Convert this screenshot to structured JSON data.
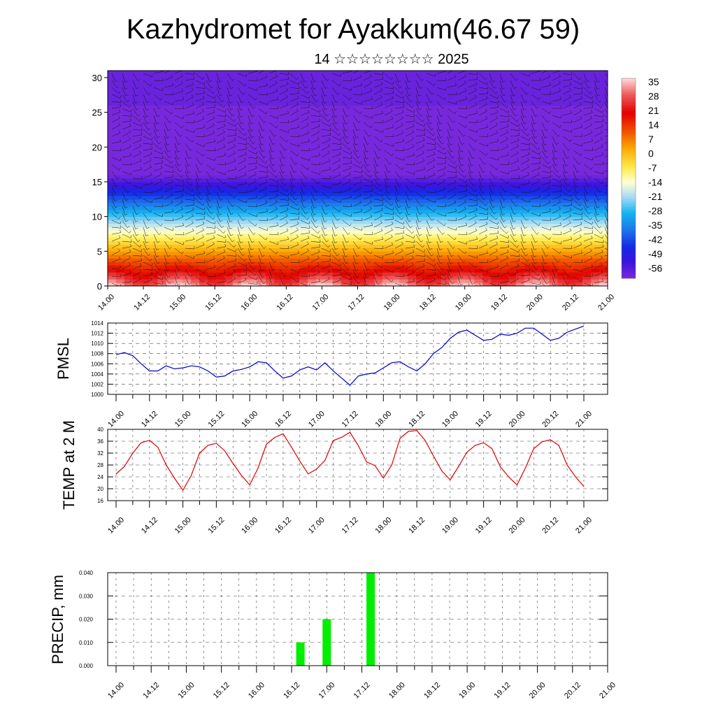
{
  "header": {
    "title": "Kazhydromet for Ayakkum(46.67 59)",
    "subtitle": "14 ☆☆☆☆☆☆☆☆ 2025"
  },
  "time_labels": [
    "14.00",
    "14.12",
    "15.00",
    "15.12",
    "16.00",
    "16.12",
    "17.00",
    "17.12",
    "18.00",
    "18.12",
    "19.00",
    "19.12",
    "20.00",
    "20.12",
    "21.00"
  ],
  "chart_data": [
    {
      "type": "heatmap",
      "name": "cross-section",
      "x": [
        "14.00",
        "14.12",
        "15.00",
        "15.12",
        "16.00",
        "16.12",
        "17.00",
        "17.12",
        "18.00",
        "18.12",
        "19.00",
        "19.12",
        "20.00",
        "20.12",
        "21.00"
      ],
      "ylim": [
        0,
        31
      ],
      "yticks": [
        "0",
        "5",
        "10",
        "15",
        "20",
        "25",
        "30"
      ],
      "color_bar": {
        "labels": [
          "35",
          "28",
          "21",
          "14",
          "7",
          "0",
          "-7",
          "-14",
          "-21",
          "-28",
          "-35",
          "-42",
          "-49",
          "-56"
        ],
        "range": [
          -60,
          38
        ]
      },
      "contour_note": "temperature shading with wind barbs"
    },
    {
      "type": "line",
      "name": "pmsl",
      "ylabel": "PMSL",
      "ylim": [
        1000,
        1014
      ],
      "yticks": [
        "1000",
        "1002",
        "1004",
        "1006",
        "1008",
        "1010",
        "1012",
        "1014"
      ],
      "color": "#0000cc",
      "x_start": 0,
      "x_step": 3,
      "values": [
        1007.8,
        1008.2,
        1007.6,
        1006.0,
        1004.6,
        1004.6,
        1005.6,
        1005.0,
        1005.2,
        1005.6,
        1005.4,
        1004.6,
        1003.4,
        1003.6,
        1004.6,
        1004.9,
        1005.4,
        1006.4,
        1006.2,
        1004.6,
        1003.2,
        1003.6,
        1004.8,
        1005.4,
        1004.8,
        1006.2,
        1004.6,
        1003.2,
        1001.8,
        1003.6,
        1004.0,
        1004.2,
        1005.2,
        1006.2,
        1006.4,
        1005.4,
        1004.6,
        1006.0,
        1008.0,
        1009.2,
        1011.0,
        1012.2,
        1012.6,
        1011.6,
        1010.6,
        1010.8,
        1011.8,
        1011.6,
        1012.0,
        1013.0,
        1013.0,
        1011.8,
        1010.6,
        1011.0,
        1012.2,
        1012.8,
        1013.4
      ]
    },
    {
      "type": "line",
      "name": "temp2m",
      "ylabel": "TEMP at 2 M",
      "ylim": [
        16,
        40
      ],
      "yticks": [
        "16",
        "20",
        "24",
        "28",
        "32",
        "36",
        "40"
      ],
      "color": "#dd0000",
      "x_start": 0,
      "x_step": 3,
      "values": [
        25.0,
        27.5,
        32.0,
        35.5,
        36.3,
        34.0,
        28.0,
        23.5,
        19.5,
        24.5,
        32.0,
        34.6,
        35.3,
        32.8,
        28.5,
        24.5,
        21.3,
        27.0,
        35.0,
        37.3,
        38.5,
        34.0,
        29.3,
        25.0,
        26.6,
        29.5,
        36.2,
        37.3,
        39.0,
        34.5,
        29.0,
        27.8,
        23.6,
        28.0,
        37.0,
        39.3,
        39.6,
        36.3,
        31.0,
        26.0,
        23.0,
        27.5,
        32.3,
        34.6,
        35.5,
        33.5,
        27.4,
        24.0,
        21.3,
        27.0,
        33.5,
        35.8,
        36.5,
        34.6,
        28.0,
        24.0,
        20.8
      ]
    },
    {
      "type": "bar",
      "name": "precip",
      "ylabel": "PRECIP, mm",
      "ylim": [
        0,
        0.04
      ],
      "yticks": [
        "0.000",
        "0.010",
        "0.020",
        "0.030",
        "0.040"
      ],
      "color": "#00ee00",
      "bars": [
        {
          "hour": 63,
          "value": 0.01
        },
        {
          "hour": 72,
          "value": 0.02
        },
        {
          "hour": 87,
          "value": 0.04
        }
      ]
    }
  ]
}
